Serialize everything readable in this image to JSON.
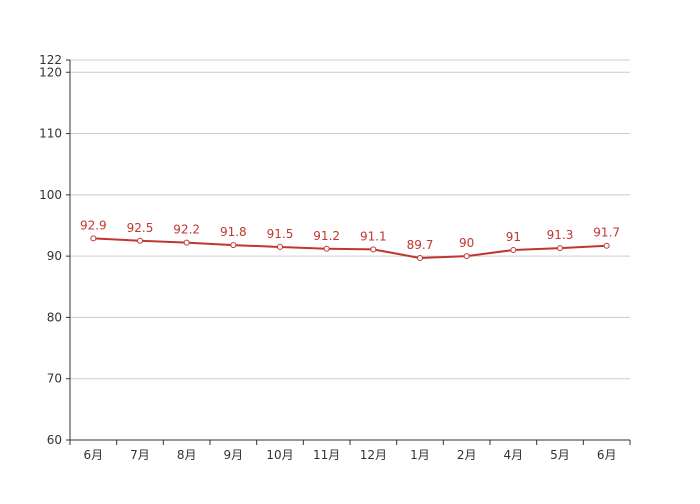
{
  "chart_data": {
    "type": "line",
    "categories": [
      "6月",
      "7月",
      "8月",
      "9月",
      "10月",
      "11月",
      "12月",
      "1月",
      "2月",
      "4月",
      "5月",
      "6月"
    ],
    "series": [
      {
        "values": [
          92.9,
          92.5,
          92.2,
          91.8,
          91.5,
          91.2,
          91.1,
          89.7,
          90,
          91,
          91.3,
          91.7
        ],
        "color": "#c23531"
      }
    ],
    "title": "",
    "xlabel": "",
    "ylabel": "",
    "ylim": [
      60,
      122
    ],
    "yticks": [
      60,
      70,
      80,
      90,
      100,
      110,
      120,
      122
    ],
    "grid": true,
    "legend": "none",
    "data_labels": true
  }
}
